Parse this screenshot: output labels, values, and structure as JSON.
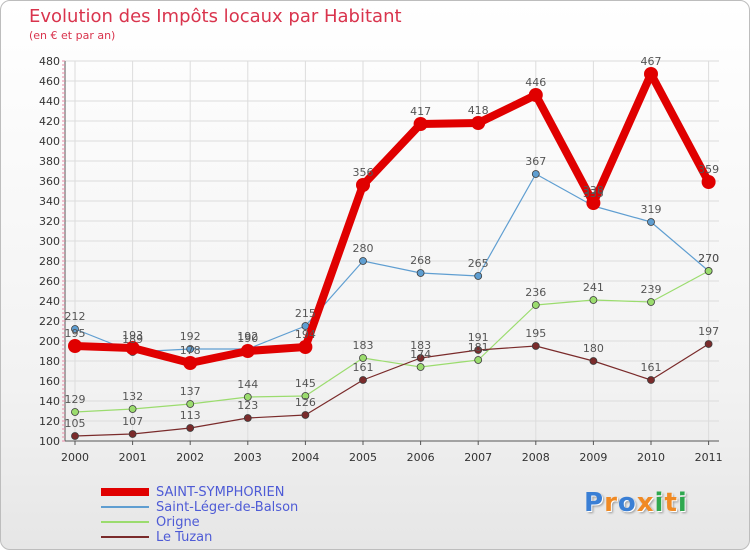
{
  "header": {
    "title": "Evolution des Impôts locaux par Habitant",
    "subtitle": "(en € et par an)"
  },
  "chart_data": {
    "type": "line",
    "x": [
      "2000",
      "2001",
      "2002",
      "2003",
      "2004",
      "2005",
      "2006",
      "2007",
      "2008",
      "2009",
      "2010",
      "2011"
    ],
    "yticks": [
      100,
      120,
      140,
      160,
      180,
      200,
      220,
      240,
      260,
      280,
      300,
      320,
      340,
      360,
      380,
      400,
      420,
      440,
      460,
      480
    ],
    "ylim": [
      100,
      480
    ],
    "grid": true,
    "legend_position": "bottom-left",
    "series": [
      {
        "name": "SAINT-SYMPHORIEN",
        "color": "#e00000",
        "width": 8,
        "marker": 7,
        "values": [
          195,
          193,
          178,
          190,
          194,
          356,
          417,
          418,
          446,
          338,
          467,
          359
        ]
      },
      {
        "name": "Saint-Léger-de-Balson",
        "color": "#5f9ed1",
        "width": 1.2,
        "marker": 3.5,
        "values": [
          212,
          189,
          192,
          192,
          215,
          280,
          268,
          265,
          367,
          335,
          319,
          270
        ]
      },
      {
        "name": "Origne",
        "color": "#9bdc6e",
        "width": 1.2,
        "marker": 3.5,
        "values": [
          129,
          132,
          137,
          144,
          145,
          183,
          174,
          181,
          236,
          241,
          239,
          270
        ]
      },
      {
        "name": "Le Tuzan",
        "color": "#7a2b2b",
        "width": 1.2,
        "marker": 3.5,
        "values": [
          105,
          107,
          113,
          123,
          126,
          161,
          183,
          191,
          195,
          180,
          161,
          197
        ]
      }
    ]
  },
  "logo": {
    "letters": [
      "P",
      "r",
      "o",
      "x",
      "i",
      "t",
      "i"
    ],
    "colors": [
      "#3a7fd5",
      "#f08a24",
      "#3a7fd5",
      "#f08a24",
      "#2fa84f",
      "#f08a24",
      "#2fa84f"
    ]
  }
}
